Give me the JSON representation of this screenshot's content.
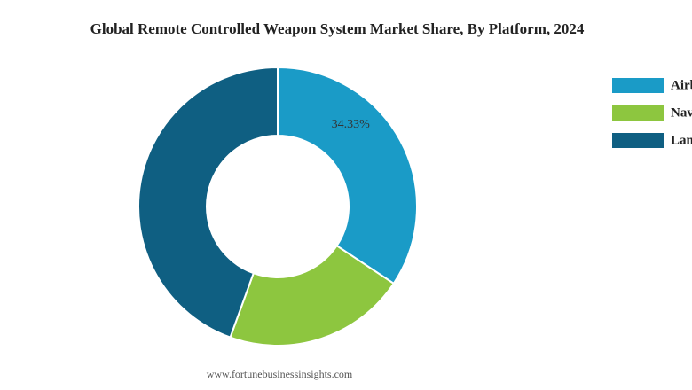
{
  "chart_data": {
    "type": "pie",
    "title": "Global Remote Controlled Weapon System Market Share, By Platform, 2024",
    "categories": [
      "Airborne",
      "Naval",
      "Land"
    ],
    "values": [
      34.33,
      21.2,
      44.47
    ],
    "value_labels": [
      "34.33%",
      null,
      null
    ],
    "colors": [
      "#1a9bc7",
      "#8dc63f",
      "#0f5f82"
    ],
    "donut": true,
    "legend": "right",
    "source": "www.fortunebusinessinsights.com"
  }
}
